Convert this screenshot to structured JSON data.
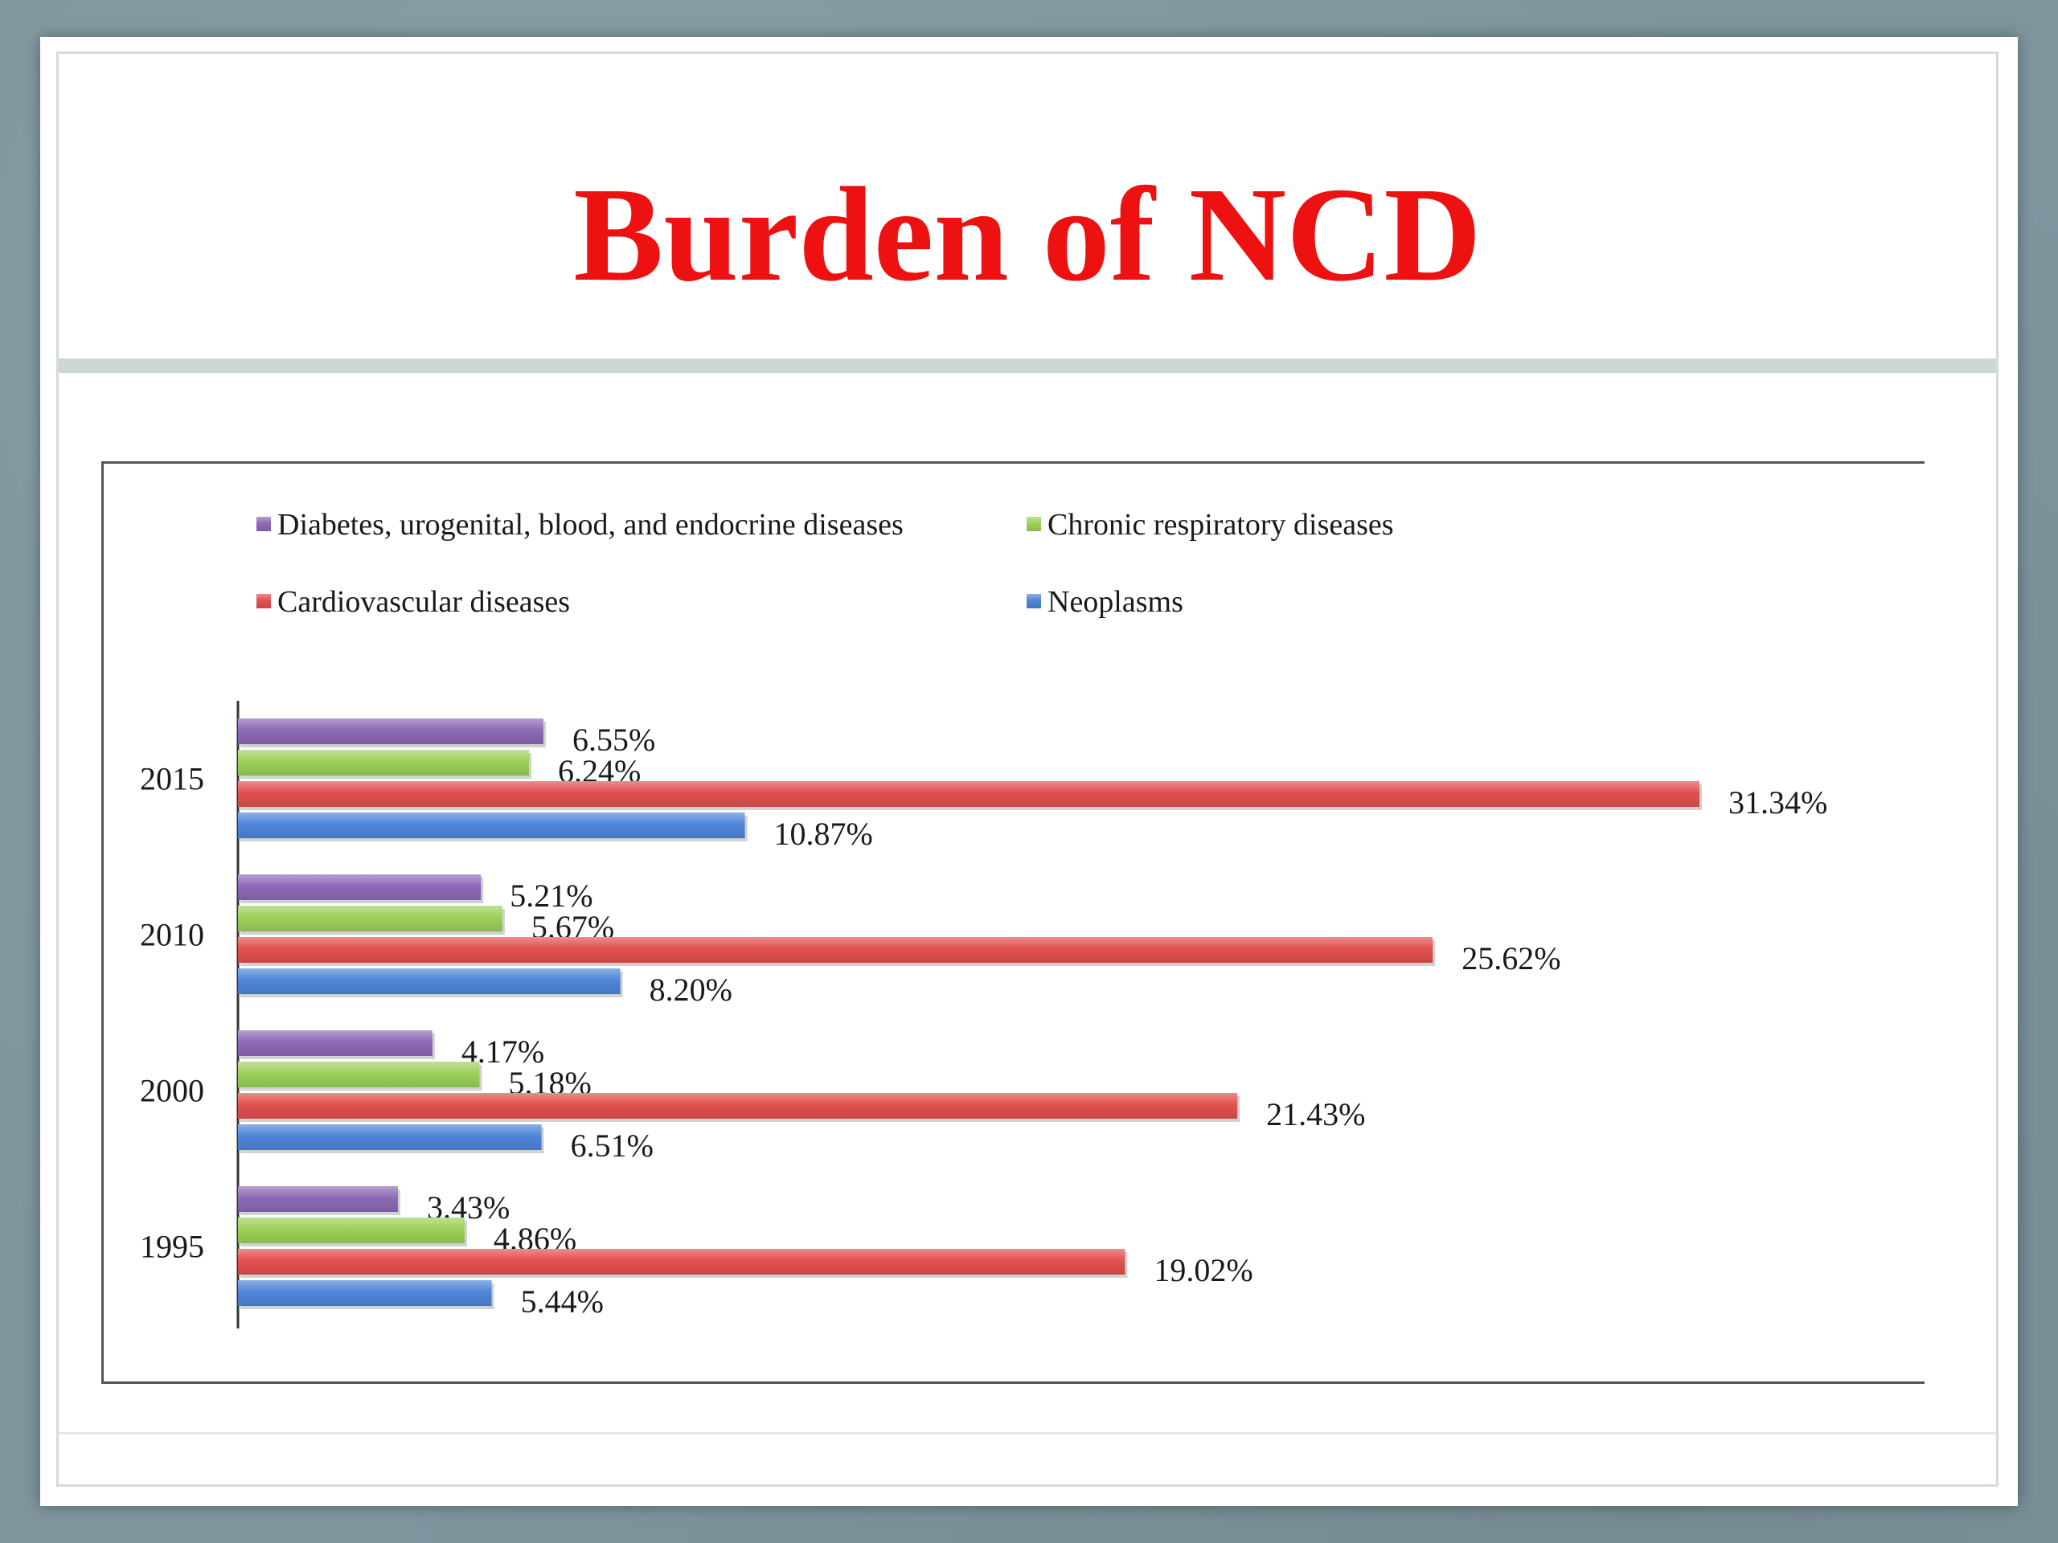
{
  "slide": {
    "title": "Burden of NCD"
  },
  "colors": {
    "title": "#ee1111",
    "background": "#7f959e"
  },
  "chart_data": {
    "type": "bar",
    "orientation": "horizontal",
    "title": "",
    "xlabel": "",
    "ylabel": "",
    "categories": [
      "2015",
      "2010",
      "2000",
      "1995"
    ],
    "xlim": [
      0,
      35
    ],
    "grid": false,
    "legend_position": "top",
    "series": [
      {
        "name": "Diabetes, urogenital, blood, and endocrine diseases",
        "color": "#8e6ab7",
        "values": [
          6.55,
          5.21,
          4.17,
          3.43
        ],
        "labels": [
          "6.55%",
          "5.21%",
          "4.17%",
          "3.43%"
        ]
      },
      {
        "name": "Chronic respiratory diseases",
        "color": "#9dd15a",
        "values": [
          6.24,
          5.67,
          5.18,
          4.86
        ],
        "labels": [
          "6.24%",
          "5.67%",
          "5.18%",
          "4.86%"
        ]
      },
      {
        "name": "Cardiovascular diseases",
        "color": "#e35050",
        "values": [
          31.34,
          25.62,
          21.43,
          19.02
        ],
        "labels": [
          "31.34%",
          "25.62%",
          "21.43%",
          "19.02%"
        ]
      },
      {
        "name": "Neoplasms",
        "color": "#4f86d9",
        "values": [
          10.87,
          8.2,
          6.51,
          5.44
        ],
        "labels": [
          "10.87%",
          "8.20%",
          "6.51%",
          "5.44%"
        ]
      }
    ]
  }
}
